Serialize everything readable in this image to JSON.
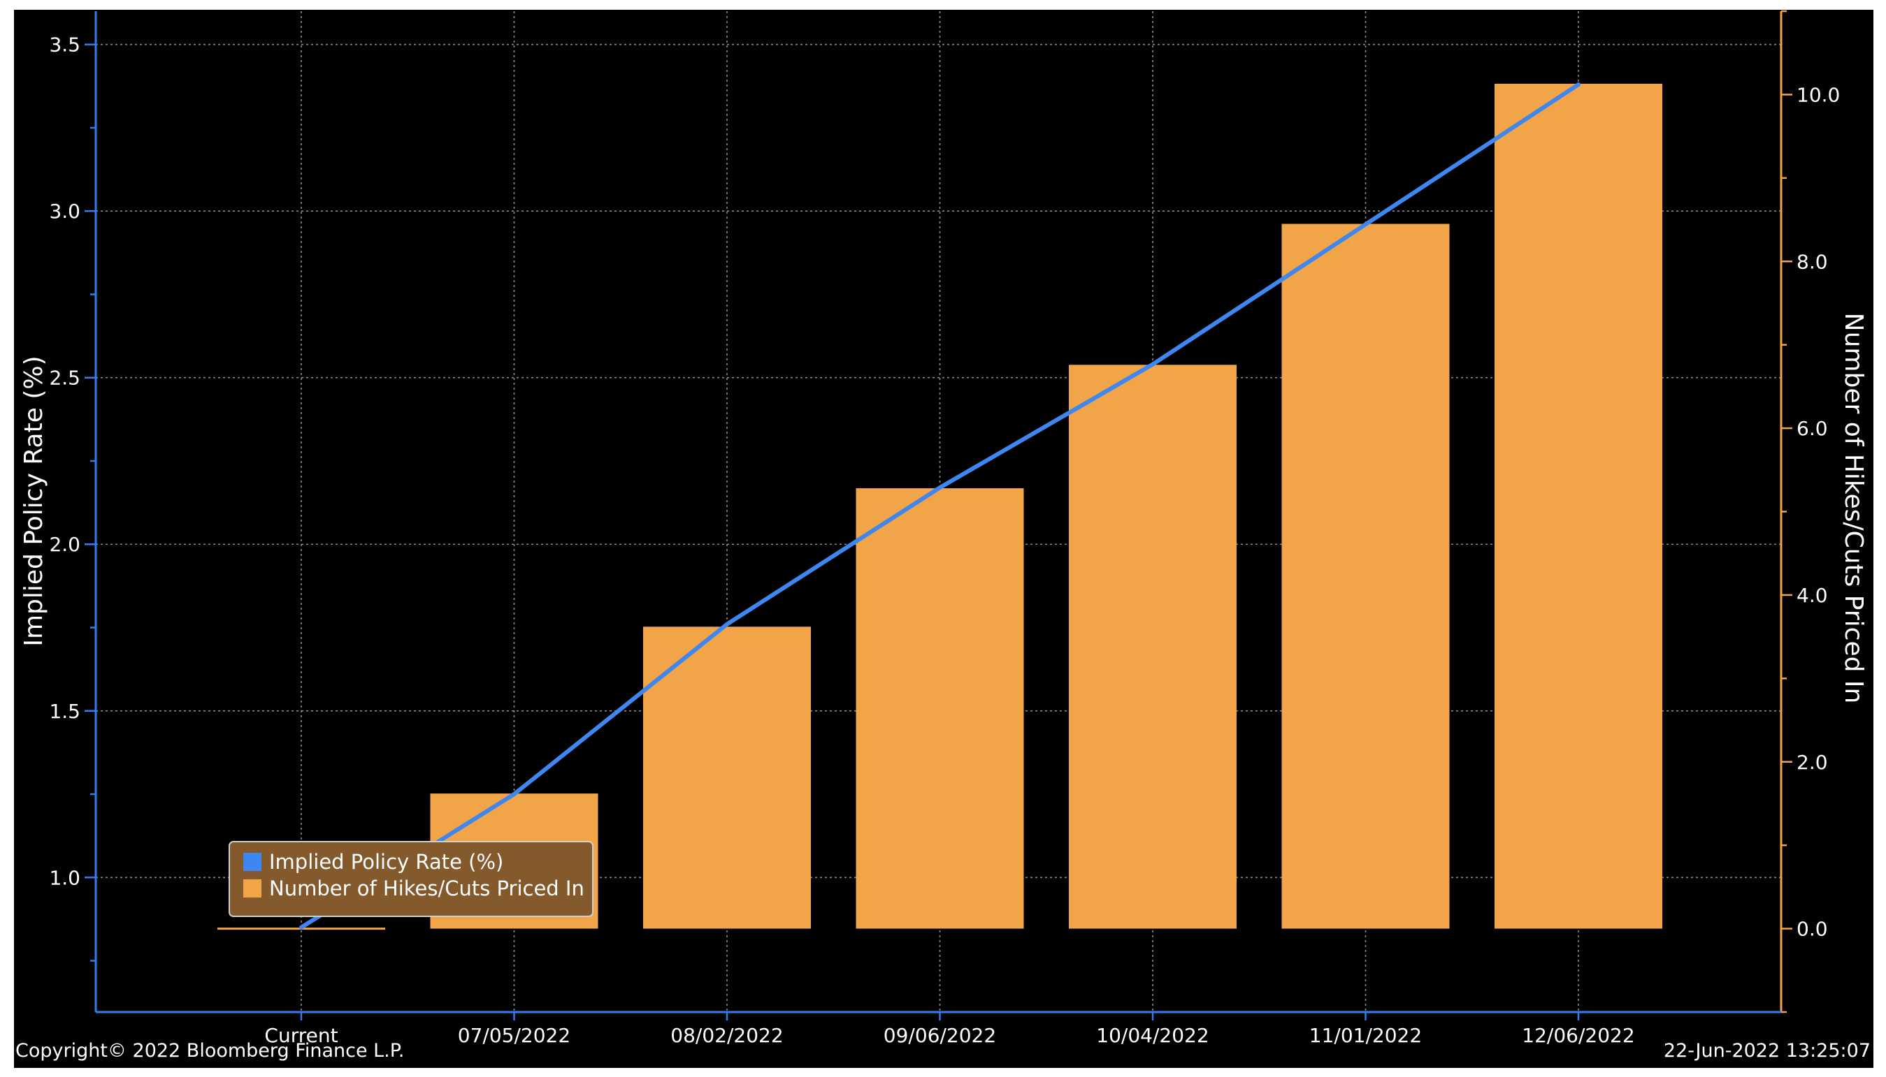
{
  "footer": {
    "copyright": "Copyright© 2022 Bloomberg Finance L.P.",
    "timestamp": "22-Jun-2022 13:25:07"
  },
  "colors": {
    "background": "#000000",
    "line": "#3e86f0",
    "bars": "#f1a448",
    "left_axis": "#2f7ff2",
    "right_axis": "#f1a448",
    "grid": "#8a8a8a",
    "text": "#ffffff",
    "legend_bg": "#845a2c"
  },
  "chart_data": {
    "type": "bar",
    "categories": [
      "Current",
      "07/05/2022",
      "08/02/2022",
      "09/06/2022",
      "10/04/2022",
      "11/01/2022",
      "12/06/2022"
    ],
    "series": [
      {
        "name": "Number of Hikes/Cuts Priced In",
        "type": "bar",
        "axis": "right",
        "values": [
          0.0,
          1.62,
          3.62,
          5.28,
          6.76,
          8.45,
          10.13
        ]
      },
      {
        "name": "Implied Policy Rate (%)",
        "type": "line",
        "axis": "left",
        "values": [
          0.85,
          1.25,
          1.76,
          2.17,
          2.54,
          2.96,
          3.38
        ]
      }
    ],
    "y_left": {
      "label": "Implied Policy Rate (%)",
      "ticks": [
        "1.0",
        "1.5",
        "2.0",
        "2.5",
        "3.0",
        "3.5"
      ],
      "range": [
        0.596,
        3.6
      ]
    },
    "y_right": {
      "label": "Number of Hikes/Cuts Priced In",
      "ticks": [
        "0.0",
        "2.0",
        "4.0",
        "6.0",
        "8.0",
        "10.0"
      ],
      "range": [
        -1.0,
        11.0
      ]
    },
    "grid": true,
    "legend": {
      "position": "bottom-left",
      "entries": [
        "Implied Policy Rate (%)",
        "Number of Hikes/Cuts Priced In"
      ]
    }
  }
}
